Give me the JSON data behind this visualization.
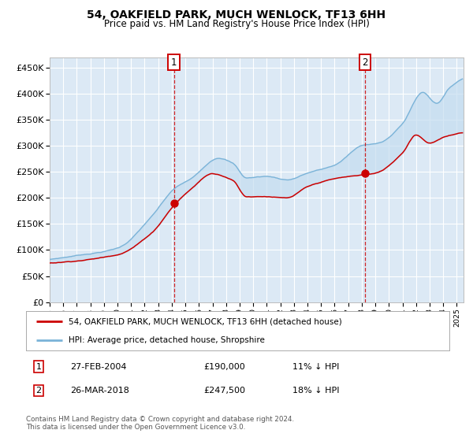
{
  "title_line1": "54, OAKFIELD PARK, MUCH WENLOCK, TF13 6HH",
  "title_line2": "Price paid vs. HM Land Registry's House Price Index (HPI)",
  "ylim": [
    0,
    470000
  ],
  "yticks": [
    0,
    50000,
    100000,
    150000,
    200000,
    250000,
    300000,
    350000,
    400000,
    450000
  ],
  "background_color": "#ffffff",
  "plot_bg_color": "#dce9f5",
  "grid_color": "#ffffff",
  "hpi_color": "#7ab3d8",
  "price_color": "#cc0000",
  "sale1_x": 2004.15,
  "sale1_y": 190000,
  "sale2_x": 2018.23,
  "sale2_y": 247500,
  "legend_entry1": "54, OAKFIELD PARK, MUCH WENLOCK, TF13 6HH (detached house)",
  "legend_entry2": "HPI: Average price, detached house, Shropshire",
  "table_row1": [
    "1",
    "27-FEB-2004",
    "£190,000",
    "11% ↓ HPI"
  ],
  "table_row2": [
    "2",
    "26-MAR-2018",
    "£247,500",
    "18% ↓ HPI"
  ],
  "footnote": "Contains HM Land Registry data © Crown copyright and database right 2024.\nThis data is licensed under the Open Government Licence v3.0.",
  "xmin": 1995.0,
  "xmax": 2025.5
}
